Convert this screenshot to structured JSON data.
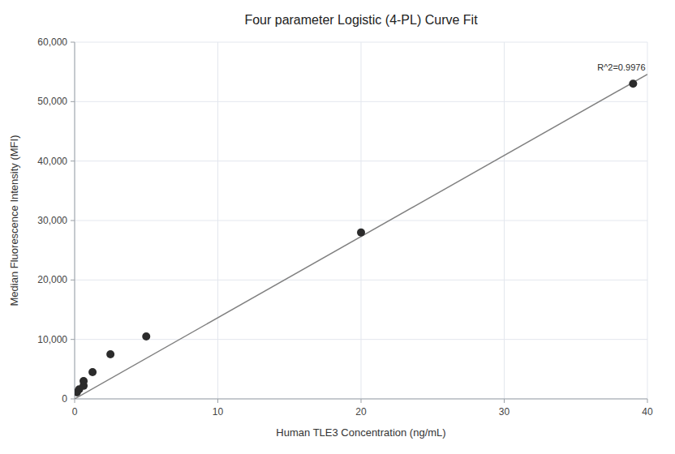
{
  "chart_data": {
    "type": "scatter",
    "title": "Four parameter Logistic (4-PL) Curve Fit",
    "xlabel": "Human TLE3 Concentration (ng/mL)",
    "ylabel": "Median Fluorescence Intensity (MFI)",
    "series": [
      {
        "type": "scatter",
        "color": "#2b2b2b",
        "x": [
          0.156,
          0.313,
          0.625,
          0.625,
          1.25,
          2.5,
          5.0,
          20.0,
          39.0
        ],
        "values": [
          1100,
          1600,
          2200,
          3000,
          4500,
          7500,
          10500,
          28000,
          53000
        ]
      },
      {
        "type": "line",
        "color": "#808080",
        "x": [
          0.0,
          40.0
        ],
        "values": [
          0.0,
          54600
        ]
      }
    ],
    "annotations": [
      {
        "text": "R^2=0.9976",
        "x": 36.5,
        "y": 54800,
        "color": "#2b2b2b"
      }
    ],
    "xlim": [
      0,
      40
    ],
    "ylim": [
      0,
      60000
    ],
    "xticks": [
      0,
      10,
      20,
      30,
      40
    ],
    "yticks": [
      0,
      {
        "value": 10000,
        "label": "10,000"
      },
      {
        "value": 20000,
        "label": "20,000"
      },
      {
        "value": 30000,
        "label": "30,000"
      },
      {
        "value": 40000,
        "label": "40,000"
      },
      {
        "value": 50000,
        "label": "50,000"
      },
      {
        "value": 60000,
        "label": "60,000"
      }
    ],
    "grid": true
  }
}
